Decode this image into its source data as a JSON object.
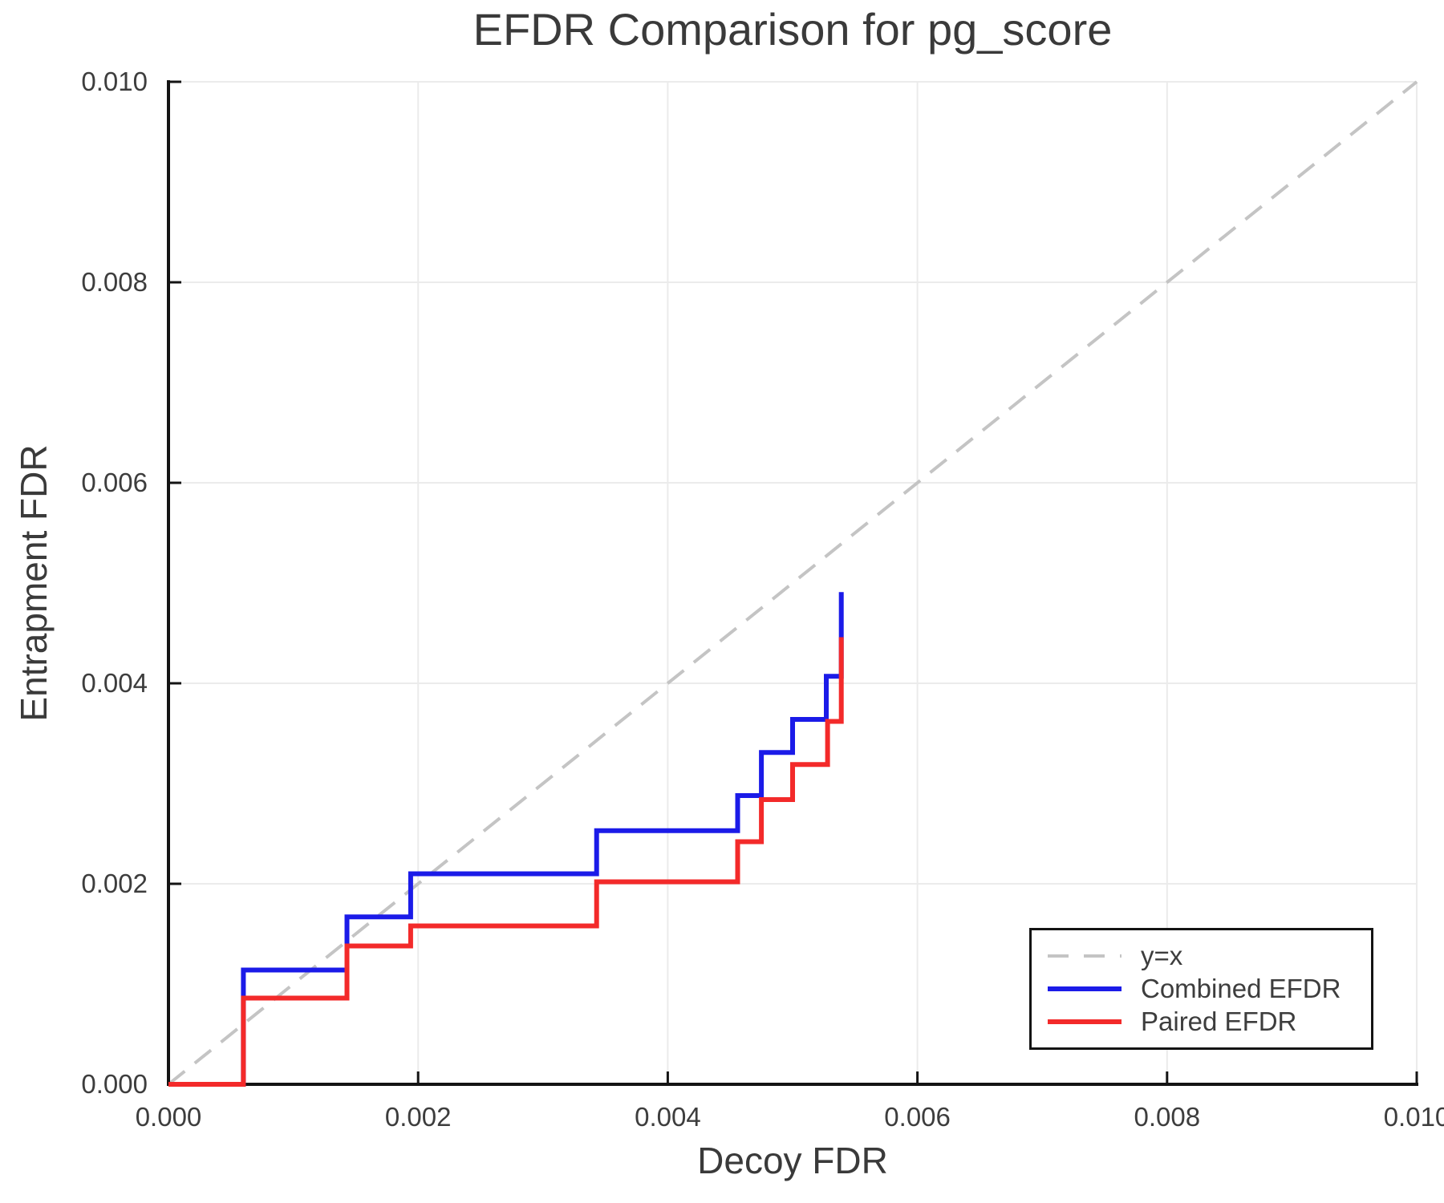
{
  "title": "EFDR Comparison for pg_score",
  "axes": {
    "x_label": "Decoy FDR",
    "y_label": "Entrapment FDR",
    "x_ticks": [
      0,
      0.002,
      0.004,
      0.006,
      0.008,
      0.01
    ],
    "x_tick_labels": [
      "0.000",
      "0.002",
      "0.004",
      "0.006",
      "0.008",
      "0.010"
    ],
    "y_ticks": [
      0,
      0.002,
      0.004,
      0.006,
      0.008,
      0.01
    ],
    "y_tick_labels": [
      "0.000",
      "0.002",
      "0.004",
      "0.006",
      "0.008",
      "0.010"
    ]
  },
  "legend": {
    "items": [
      {
        "label": "y=x",
        "style": "dashed",
        "color": "#c4c4c4"
      },
      {
        "label": "Combined EFDR",
        "style": "solid",
        "color": "#1b1be8"
      },
      {
        "label": "Paired EFDR",
        "style": "solid",
        "color": "#f32a2a"
      }
    ]
  },
  "colors": {
    "grid": "#ebebeb",
    "spine": "#141414",
    "text": "#3d3d3d",
    "identity": "#c4c4c4",
    "combined": "#1b1be8",
    "paired": "#f32a2a"
  },
  "chart_data": {
    "type": "line",
    "title": "EFDR Comparison for pg_score",
    "xlabel": "Decoy FDR",
    "ylabel": "Entrapment FDR",
    "xlim": [
      0,
      0.01
    ],
    "ylim": [
      0,
      0.01
    ],
    "grid": true,
    "legend_position": "lower right",
    "series": [
      {
        "name": "y=x",
        "style": "dashed",
        "color": "#c4c4c4",
        "width": 4,
        "points": [
          [
            0,
            0
          ],
          [
            0.01,
            0.01
          ]
        ]
      },
      {
        "name": "Combined EFDR",
        "style": "solid",
        "color": "#1b1be8",
        "width": 6,
        "points": [
          [
            0,
            0
          ],
          [
            0.0006,
            0
          ],
          [
            0.0006,
            0.00114
          ],
          [
            0.00143,
            0.00114
          ],
          [
            0.00143,
            0.00167
          ],
          [
            0.00194,
            0.00167
          ],
          [
            0.00194,
            0.0021
          ],
          [
            0.00343,
            0.0021
          ],
          [
            0.00343,
            0.00253
          ],
          [
            0.00456,
            0.00253
          ],
          [
            0.00456,
            0.00288
          ],
          [
            0.00475,
            0.00288
          ],
          [
            0.00475,
            0.00331
          ],
          [
            0.005,
            0.00331
          ],
          [
            0.005,
            0.00364
          ],
          [
            0.00527,
            0.00364
          ],
          [
            0.00527,
            0.00407
          ],
          [
            0.00539,
            0.00407
          ],
          [
            0.00539,
            0.00491
          ]
        ]
      },
      {
        "name": "Paired EFDR",
        "style": "solid",
        "color": "#f32a2a",
        "width": 6,
        "points": [
          [
            0,
            0
          ],
          [
            0.0006,
            0
          ],
          [
            0.0006,
            0.00086
          ],
          [
            0.00143,
            0.00086
          ],
          [
            0.00143,
            0.00138
          ],
          [
            0.00194,
            0.00138
          ],
          [
            0.00194,
            0.00158
          ],
          [
            0.00343,
            0.00158
          ],
          [
            0.00343,
            0.00202
          ],
          [
            0.00456,
            0.00202
          ],
          [
            0.00456,
            0.00242
          ],
          [
            0.00475,
            0.00242
          ],
          [
            0.00475,
            0.00284
          ],
          [
            0.005,
            0.00284
          ],
          [
            0.005,
            0.00319
          ],
          [
            0.00528,
            0.00319
          ],
          [
            0.00528,
            0.00362
          ],
          [
            0.00539,
            0.00362
          ],
          [
            0.00539,
            0.00446
          ]
        ]
      }
    ]
  }
}
